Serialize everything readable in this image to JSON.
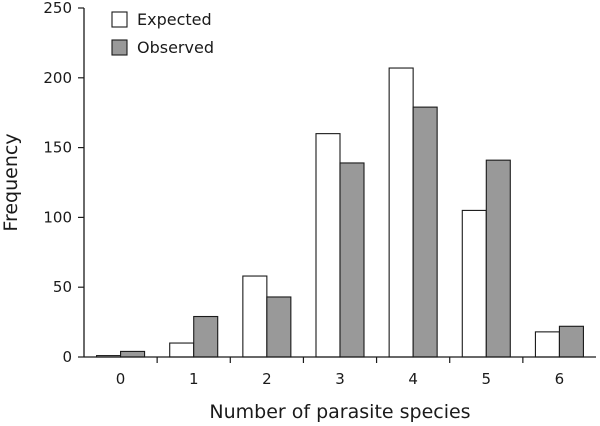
{
  "chart_data": {
    "type": "bar",
    "title": "",
    "xlabel": "Number of parasite species",
    "ylabel": "Frequency",
    "categories": [
      "0",
      "1",
      "2",
      "3",
      "4",
      "5",
      "6"
    ],
    "series": [
      {
        "name": "Expected",
        "values": [
          1,
          10,
          58,
          160,
          207,
          105,
          18
        ],
        "fill": "#ffffff",
        "stroke": "#1a1a1a"
      },
      {
        "name": "Observed",
        "values": [
          4,
          29,
          43,
          139,
          179,
          141,
          22
        ],
        "fill": "#999999",
        "stroke": "#1a1a1a"
      }
    ],
    "ylim": [
      0,
      250
    ],
    "yticks": [
      "0",
      "50",
      "100",
      "150",
      "200",
      "250"
    ],
    "grid": false,
    "legend_position": "top-left"
  }
}
